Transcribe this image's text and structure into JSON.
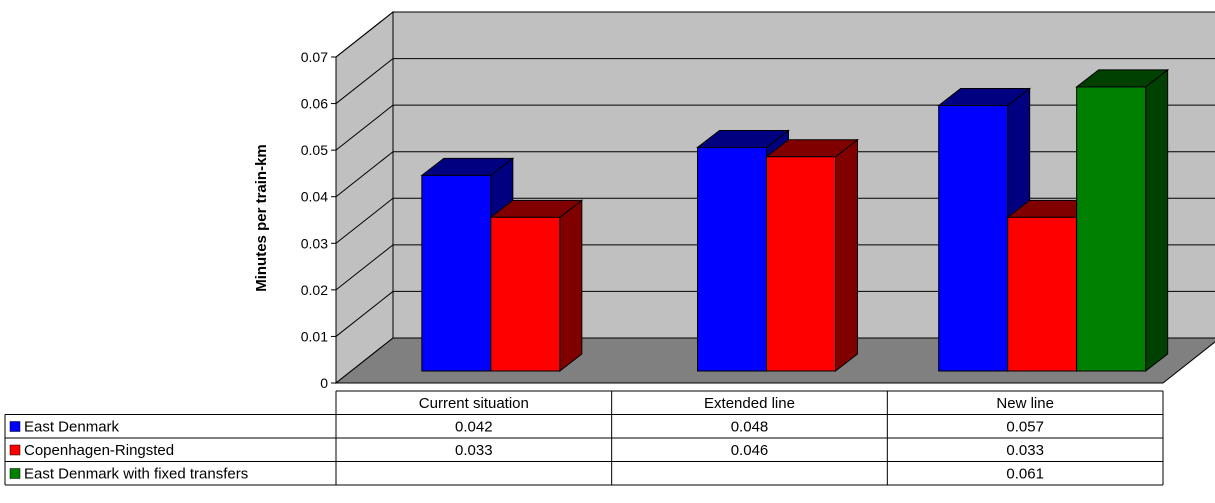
{
  "chart_data": {
    "type": "bar",
    "title": "",
    "xlabel": "",
    "ylabel": "Minutes per train-km",
    "ylim": [
      0,
      0.07
    ],
    "yticks": [
      0,
      0.01,
      0.02,
      0.03,
      0.04,
      0.05,
      0.06,
      0.07
    ],
    "ytick_labels": [
      "0",
      "0.01",
      "0.02",
      "0.03",
      "0.04",
      "0.05",
      "0.06",
      "0.07"
    ],
    "categories": [
      "Current situation",
      "Extended line",
      "New line"
    ],
    "grid": true,
    "style": "3d-clustered-bar-with-data-table",
    "series": [
      {
        "name": "East Denmark",
        "color": "#0000FF",
        "side_color": "#000080",
        "values": [
          0.042,
          0.048,
          0.057
        ],
        "labels": [
          "0.042",
          "0.048",
          "0.057"
        ]
      },
      {
        "name": "Copenhagen-Ringsted",
        "color": "#FF0000",
        "side_color": "#800000",
        "values": [
          0.033,
          0.046,
          0.033
        ],
        "labels": [
          "0.033",
          "0.046",
          "0.033"
        ]
      },
      {
        "name": "East Denmark with fixed transfers",
        "color": "#008000",
        "side_color": "#004000",
        "values": [
          null,
          null,
          0.061
        ],
        "labels": [
          "",
          "",
          "0.061"
        ]
      }
    ],
    "colors": {
      "wall": "#C0C0C0",
      "floor": "#808080",
      "gridline": "#000000"
    }
  }
}
